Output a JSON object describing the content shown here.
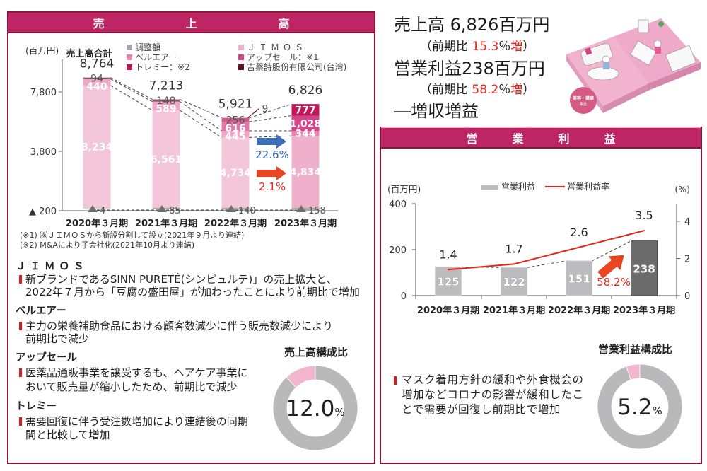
{
  "colors": {
    "header_b": "#bd2565",
    "panel_border": "#8a1538",
    "accent_red": "#e0261b",
    "accent_blue": "#2e5fa8",
    "text": "#222222"
  },
  "headline": {
    "sales": "売上高 6,826百万円",
    "sales_change": {
      "open": "（前期比 ",
      "value": "15.3",
      "unit": "％",
      "suffix": "増",
      "close": "）"
    },
    "profit": "営業利益238百万円",
    "profit_change": {
      "open": "（前期比 ",
      "value": "58.2",
      "unit": "％",
      "suffix": "増",
      "close": "）"
    },
    "summary": "―増収増益"
  },
  "illustration": {
    "badge_line1": "美容・健康",
    "badge_line2": "事業"
  },
  "sales_panel": {
    "header_chars": [
      "売",
      "上",
      "高"
    ],
    "footnotes": [
      "(※1) ㈱ＪＩＭＯＳから新設分割して設立(2021年９月より連結)",
      "(※2) M&Aにより子会社化(2021年10月より連結)"
    ],
    "segments": [
      {
        "title": "ＪＩＭＯＳ",
        "lines": [
          "新ブランドであるSINN PURETÉ(シンピュルテ)」の売上拡大と、",
          "2022年７月から「豆腐の盛田屋」が加わったことにより前期比で増加"
        ]
      },
      {
        "title": "ベルエアー",
        "lines": [
          "主力の栄養補助食品における顧客数減少に伴う販売数減少により",
          "前期比で減少"
        ]
      },
      {
        "title": "アップセール",
        "lines": [
          "医薬品通販事業を譲受するも、ヘアケア事業に",
          "おいて販売量が縮小したため、前期比で減少"
        ]
      },
      {
        "title": "トレミー",
        "lines": [
          "需要回復に伴う受注数増加により連結後の同期",
          "間と比較して増加"
        ]
      }
    ]
  },
  "profit_panel": {
    "header_chars": [
      "営",
      "業",
      "利",
      "益"
    ],
    "bullet_lines": [
      "マスク着用方針の緩和や外食機会の",
      "増加などコロナの影響が緩和したこ",
      "とで需要が回復し前期比で増加"
    ]
  },
  "chart_data": [
    {
      "type": "bar",
      "stacked": true,
      "title": "売上高",
      "xlabel": "",
      "ylabel": "(百万円)",
      "ylim": [
        -200,
        9800
      ],
      "yticks": [
        -200,
        3800,
        7800
      ],
      "ytick_labels": [
        "▲ 200",
        "3,800",
        "7,800"
      ],
      "grid": false,
      "legend": "top",
      "categories": [
        "2020年３月期",
        "2021年３月期",
        "2022年３月期",
        "2023年３月期"
      ],
      "series": [
        {
          "name": "ＪＩＭＯＳ",
          "color": "#efb0cc",
          "values": [
            8234,
            6561,
            4734,
            4834
          ],
          "labels": [
            "8,234",
            "6,561",
            "4,734",
            "4,834"
          ]
        },
        {
          "name": "ベルエアー",
          "color": "#e884ad",
          "values": [
            440,
            589,
            445,
            344
          ],
          "labels": [
            "440",
            "589",
            "445",
            "344"
          ]
        },
        {
          "name": "アップセール：※1",
          "color": "#d6428a",
          "values": [
            0,
            0,
            616,
            1028
          ],
          "labels": [
            "",
            "",
            "616",
            "1,028"
          ]
        },
        {
          "name": "トレミー：※2",
          "color": "#be1a5a",
          "values": [
            0,
            0,
            256,
            777
          ],
          "labels": [
            "",
            "",
            "256",
            "777"
          ]
        },
        {
          "name": "吉蔡詩股份有限公司(台湾)",
          "color": "#5e1329",
          "values": [
            94,
            148,
            9,
            0
          ],
          "labels": [
            "94",
            "148",
            "9",
            ""
          ]
        },
        {
          "name": "調整額",
          "color": "#a6a6a6",
          "values": [
            -4,
            -85,
            -140,
            -158
          ],
          "labels": [
            "4",
            "85",
            "140",
            "158"
          ]
        }
      ],
      "totals": [
        8764,
        7213,
        5921,
        6826
      ],
      "total_labels": [
        "8,764",
        "7,213",
        "5,921",
        "6,826"
      ],
      "total_caption": "売上高合計",
      "annotations": [
        {
          "text": "22.6%",
          "color": "#2e5fa8",
          "arrow_color": "#3d70b8"
        },
        {
          "text": "2.1%",
          "color": "#e0261b",
          "arrow_color": "#ea4420"
        }
      ]
    },
    {
      "type": "bar+line",
      "title": "営業利益",
      "xlabel": "",
      "ylabel": "(百万円)",
      "y2label": "(%)",
      "ylim": [
        0,
        400
      ],
      "yticks": [
        0,
        200,
        400
      ],
      "ytick_labels": [
        "0",
        "200",
        "400"
      ],
      "y2lim": [
        0,
        5
      ],
      "y2ticks": [
        0,
        2,
        4
      ],
      "y2tick_labels": [
        "0",
        "2",
        "4"
      ],
      "grid": false,
      "legend": "top-center",
      "categories": [
        "2020年３月期",
        "2021年３月期",
        "2022年３月期",
        "2023年３月期"
      ],
      "series": [
        {
          "name": "営業利益",
          "type": "bar",
          "color": "#bcbcbf",
          "highlight_color": "#6b6b6b",
          "values": [
            125,
            122,
            151,
            238
          ],
          "labels": [
            "125",
            "122",
            "151",
            "238"
          ]
        },
        {
          "name": "営業利益率",
          "type": "line",
          "axis": "right",
          "color": "#e0261b",
          "values": [
            1.4,
            1.7,
            2.6,
            3.5
          ],
          "labels": [
            "1.4",
            "1.7",
            "2.6",
            "3.5"
          ]
        }
      ],
      "annotations": [
        {
          "text": "58.2%",
          "color": "#e0261b",
          "arrow_color": "#ea4420"
        }
      ]
    },
    {
      "type": "pie",
      "donut": true,
      "title": "売上高構成比",
      "values": [
        12.0,
        88.0
      ],
      "colors": [
        "#f2b6cf",
        "#b9b9bc"
      ],
      "center_label": "12.0",
      "center_unit": "%"
    },
    {
      "type": "pie",
      "donut": true,
      "title": "営業利益構成比",
      "values": [
        5.2,
        94.8
      ],
      "colors": [
        "#f2b6cf",
        "#b9b9bc"
      ],
      "center_label": "5.2",
      "center_unit": "%"
    }
  ]
}
